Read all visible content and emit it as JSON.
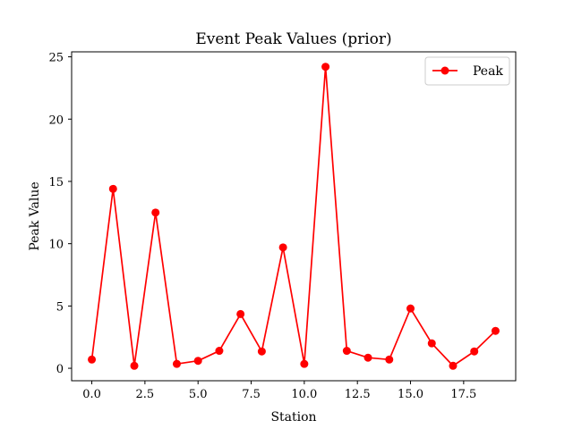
{
  "chart_data": {
    "type": "line",
    "title": "Event Peak Values (prior)",
    "xlabel": "Station",
    "ylabel": "Peak Value",
    "xlim": [
      -0.95,
      19.95
    ],
    "ylim": [
      -1.0,
      25.4
    ],
    "xticks": [
      0.0,
      2.5,
      5.0,
      7.5,
      10.0,
      12.5,
      15.0,
      17.5
    ],
    "xtick_labels": [
      "0.0",
      "2.5",
      "5.0",
      "7.5",
      "10.0",
      "12.5",
      "15.0",
      "17.5"
    ],
    "yticks": [
      0,
      5,
      10,
      15,
      20,
      25
    ],
    "ytick_labels": [
      "0",
      "5",
      "10",
      "15",
      "20",
      "25"
    ],
    "grid": false,
    "legend_position": "top-right",
    "series": [
      {
        "name": "Peak",
        "color": "#ff0000",
        "marker": "circle",
        "x": [
          0,
          1,
          2,
          3,
          4,
          5,
          6,
          7,
          8,
          9,
          10,
          11,
          12,
          13,
          14,
          15,
          16,
          17,
          18,
          19
        ],
        "y": [
          0.7,
          14.4,
          0.2,
          12.5,
          0.35,
          0.6,
          1.4,
          4.35,
          1.35,
          9.7,
          0.35,
          24.2,
          1.4,
          0.85,
          0.7,
          4.8,
          2.0,
          0.2,
          1.35,
          3.0
        ]
      }
    ]
  }
}
